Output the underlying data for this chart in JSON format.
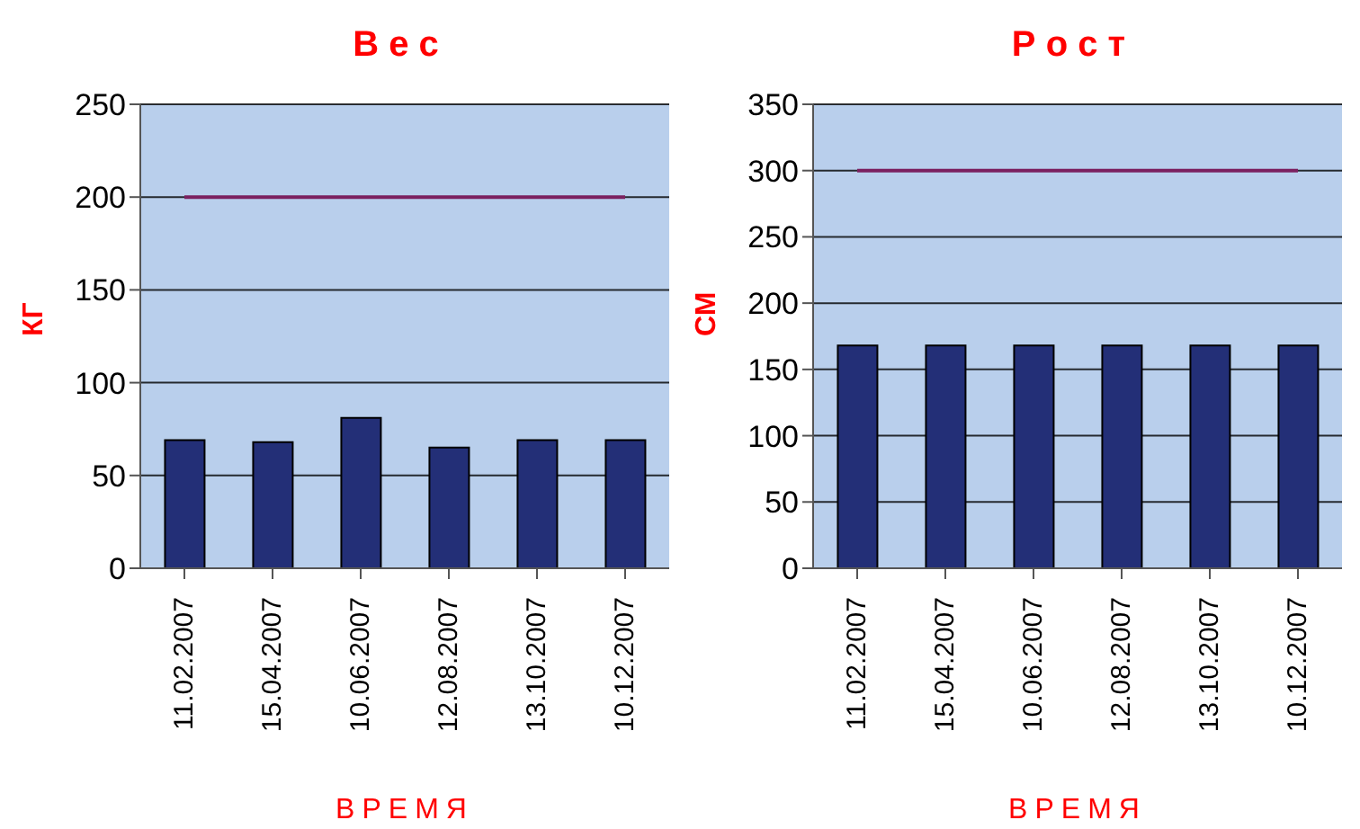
{
  "chart_data": [
    {
      "type": "bar",
      "title": "В е с",
      "xlabel": "ВРЕМЯ",
      "ylabel": "КГ",
      "categories": [
        "11.02.2007",
        "15.04.2007",
        "10.06.2007",
        "12.08.2007",
        "13.10.2007",
        "10.12.2007"
      ],
      "series": [
        {
          "color": "#232f77",
          "values": [
            69,
            68,
            81,
            65,
            69,
            69
          ]
        },
        {
          "type": "line",
          "color": "#7b2060",
          "values": [
            200,
            200,
            200,
            200,
            200,
            200
          ]
        }
      ],
      "ylim": [
        0,
        250
      ],
      "yticks": [
        0,
        50,
        100,
        150,
        200,
        250
      ],
      "grid": "y"
    },
    {
      "type": "bar",
      "title": "Р о с т",
      "xlabel": "ВРЕМЯ",
      "ylabel": "СМ",
      "categories": [
        "11.02.2007",
        "15.04.2007",
        "10.06.2007",
        "12.08.2007",
        "13.10.2007",
        "10.12.2007"
      ],
      "series": [
        {
          "color": "#232f77",
          "values": [
            168,
            168,
            168,
            168,
            168,
            168
          ]
        },
        {
          "type": "line",
          "color": "#7b2060",
          "values": [
            300,
            300,
            300,
            300,
            300,
            300
          ]
        }
      ],
      "ylim": [
        0,
        350
      ],
      "yticks": [
        0,
        50,
        100,
        150,
        200,
        250,
        300,
        350
      ],
      "grid": "y"
    }
  ]
}
